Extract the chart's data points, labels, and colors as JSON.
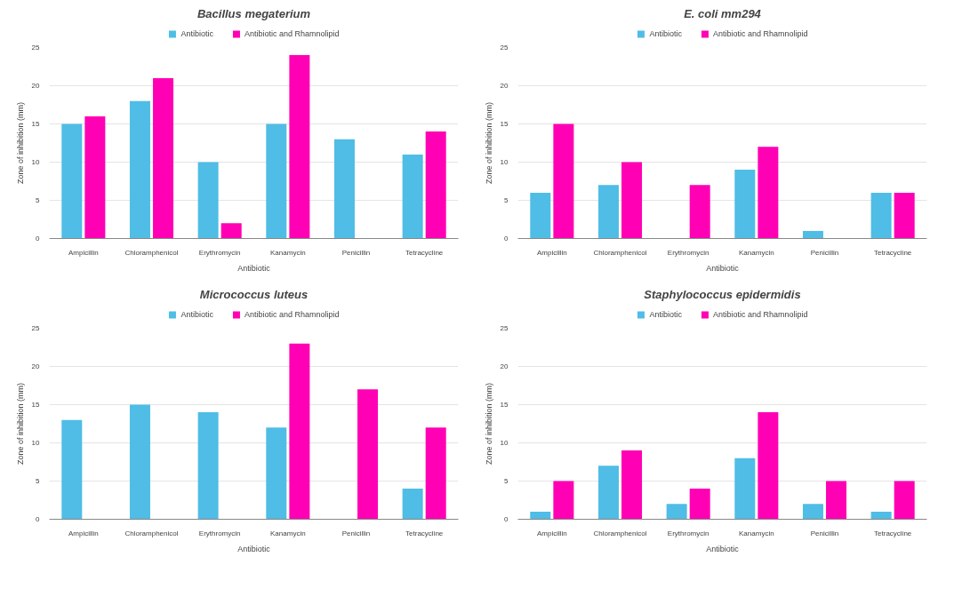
{
  "chart_data": [
    {
      "type": "bar",
      "title": "Bacillus megaterium",
      "xlabel": "Antibiotic",
      "ylabel": "Zone of inhibition (mm)",
      "categories": [
        "Ampicillin",
        "Chloramphenicol",
        "Erythromycin",
        "Kanamycin",
        "Penicillin",
        "Tetracycline"
      ],
      "ylim": [
        0,
        25
      ],
      "yticks": [
        0,
        5,
        10,
        15,
        20,
        25
      ],
      "grid": "y",
      "legend": "top",
      "series": [
        {
          "name": "Antibiotic",
          "color": "#4fbde6",
          "values": [
            15,
            18,
            10,
            15,
            13,
            11
          ]
        },
        {
          "name": "Antibiotic and Rhamnolipid",
          "color": "#ff00b4",
          "values": [
            16,
            21,
            2,
            24,
            null,
            14
          ]
        }
      ]
    },
    {
      "type": "bar",
      "title": "E. coli mm294",
      "xlabel": "Antibiotic",
      "ylabel": "Zone of inhibition (mm)",
      "categories": [
        "Ampicillin",
        "Chloramphenicol",
        "Erythromycin",
        "Kanamycin",
        "Penicillin",
        "Tetracycline"
      ],
      "ylim": [
        0,
        25
      ],
      "yticks": [
        0,
        5,
        10,
        15,
        20,
        25
      ],
      "grid": "y",
      "legend": "top",
      "series": [
        {
          "name": "Antibiotic",
          "color": "#4fbde6",
          "values": [
            6,
            7,
            null,
            9,
            1,
            6
          ]
        },
        {
          "name": "Antibiotic and Rhamnolipid",
          "color": "#ff00b4",
          "values": [
            15,
            10,
            7,
            12,
            null,
            6
          ]
        }
      ]
    },
    {
      "type": "bar",
      "title": "Micrococcus luteus",
      "xlabel": "Antibiotic",
      "ylabel": "Zone of inhibition (mm)",
      "categories": [
        "Ampicillin",
        "Chloramphenicol",
        "Erythromycin",
        "Kanamycin",
        "Penicillin",
        "Tetracycline"
      ],
      "ylim": [
        0,
        25
      ],
      "yticks": [
        0,
        5,
        10,
        15,
        20,
        25
      ],
      "grid": "y",
      "legend": "top",
      "series": [
        {
          "name": "Antibiotic",
          "color": "#4fbde6",
          "values": [
            13,
            15,
            14,
            12,
            null,
            4
          ]
        },
        {
          "name": "Antibiotic and Rhamnolipid",
          "color": "#ff00b4",
          "values": [
            null,
            null,
            null,
            23,
            17,
            12
          ]
        }
      ]
    },
    {
      "type": "bar",
      "title": "Staphylococcus epidermidis",
      "xlabel": "Antibiotic",
      "ylabel": "Zone of inhibition (mm)",
      "categories": [
        "Ampicillin",
        "Chloramphenicol",
        "Erythromycin",
        "Kanamycin",
        "Penicillin",
        "Tetracycline"
      ],
      "ylim": [
        0,
        25
      ],
      "yticks": [
        0,
        5,
        10,
        15,
        20,
        25
      ],
      "grid": "y",
      "legend": "top",
      "series": [
        {
          "name": "Antibiotic",
          "color": "#4fbde6",
          "values": [
            1,
            7,
            2,
            8,
            2,
            1
          ]
        },
        {
          "name": "Antibiotic and Rhamnolipid",
          "color": "#ff00b4",
          "values": [
            5,
            9,
            4,
            14,
            5,
            5
          ]
        }
      ]
    }
  ]
}
